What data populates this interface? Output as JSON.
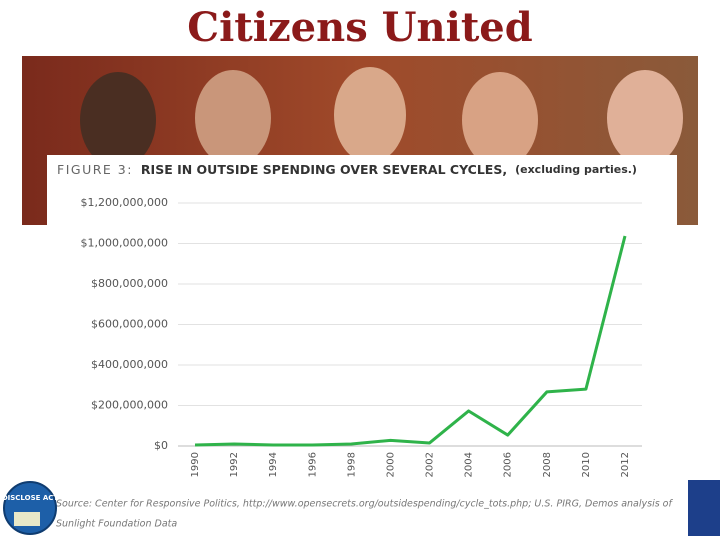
{
  "slide_title": "Citizens United",
  "logo_text": "DISCLOSE ACT",
  "chart_data": {
    "type": "line",
    "figure_label": "FIGURE 3:",
    "title": "RISE IN OUTSIDE SPENDING OVER SEVERAL CYCLES,",
    "title_note": "(excluding parties.)",
    "categories": [
      "1990",
      "1992",
      "1994",
      "1996",
      "1998",
      "2000",
      "2002",
      "2004",
      "2006",
      "2008",
      "2010",
      "2012"
    ],
    "values": [
      5000000,
      10000000,
      5000000,
      5000000,
      10000000,
      28000000,
      15000000,
      173000000,
      54000000,
      267000000,
      281000000,
      1037000000
    ],
    "color": "#2fb34a",
    "ylim": [
      0,
      1200000000
    ],
    "yticks": [
      {
        "value": 0,
        "label": "$0"
      },
      {
        "value": 200000000,
        "label": "$200,000,000"
      },
      {
        "value": 400000000,
        "label": "$400,000,000"
      },
      {
        "value": 600000000,
        "label": "$600,000,000"
      },
      {
        "value": 800000000,
        "label": "$800,000,000"
      },
      {
        "value": 1000000000,
        "label": "$1,000,000,000"
      },
      {
        "value": 1200000000,
        "label": "$1,200,000,000"
      }
    ],
    "grid": true,
    "source": [
      "Source: Center for Responsive Politics, http://www.opensecrets.org/outsidespending/cycle_tots.php; U.S. PIRG, Demos analysis of",
      "Sunlight Foundation Data"
    ]
  }
}
